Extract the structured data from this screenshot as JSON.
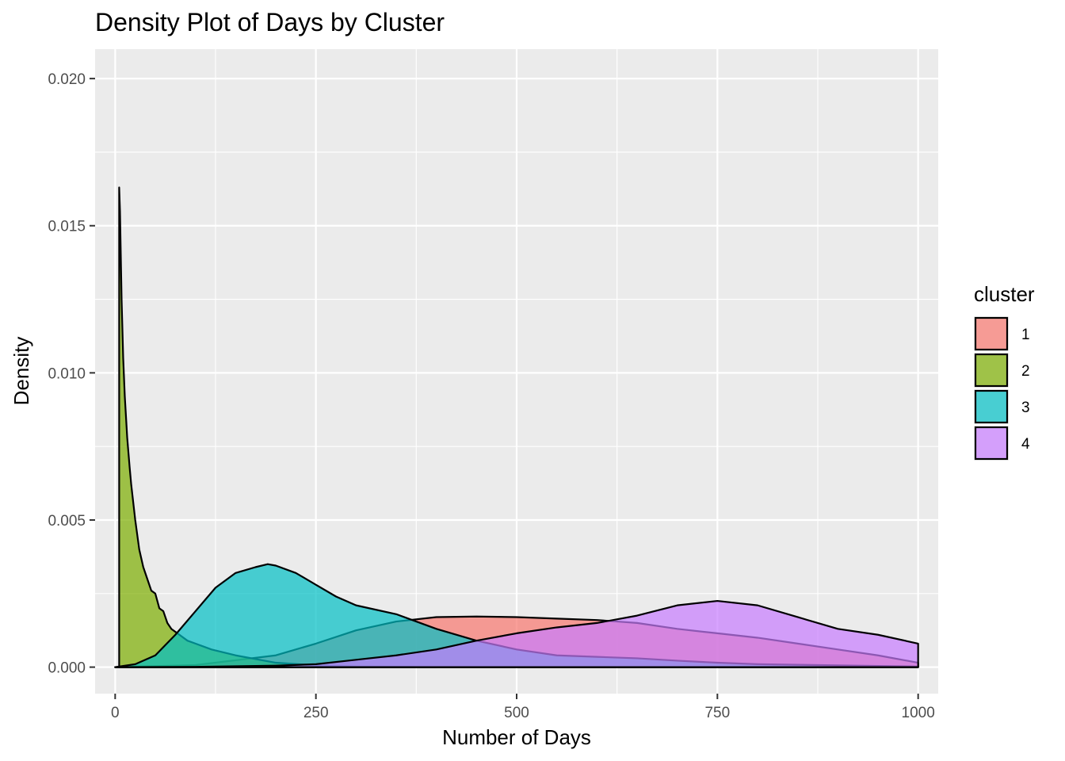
{
  "chart_data": {
    "type": "area",
    "title": "Density Plot of Days by Cluster",
    "xlabel": "Number of Days",
    "ylabel": "Density",
    "xlim": [
      -25,
      1025
    ],
    "ylim": [
      -0.0009,
      0.021
    ],
    "x_ticks": [
      0,
      250,
      500,
      750,
      1000
    ],
    "x_tick_labels": [
      "0",
      "250",
      "500",
      "750",
      "1000"
    ],
    "y_ticks": [
      0.0,
      0.005,
      0.01,
      0.015,
      0.02
    ],
    "y_tick_labels": [
      "0.000",
      "0.005",
      "0.010",
      "0.015",
      "0.020"
    ],
    "grid": true,
    "legend": {
      "title": "cluster",
      "position": "right"
    },
    "series": [
      {
        "name": "1",
        "color": "#F8766D",
        "x": [
          0,
          100,
          200,
          250,
          300,
          350,
          400,
          450,
          500,
          550,
          600,
          650,
          700,
          750,
          800,
          850,
          900,
          950,
          1000
        ],
        "y": [
          0.0,
          7e-05,
          0.0004,
          0.0008,
          0.00125,
          0.00155,
          0.0017,
          0.00172,
          0.0017,
          0.00165,
          0.0016,
          0.0015,
          0.0013,
          0.00115,
          0.001,
          0.0008,
          0.0006,
          0.0004,
          0.00015
        ]
      },
      {
        "name": "2",
        "color": "#7CAE00",
        "x": [
          5,
          6,
          8,
          10,
          12,
          15,
          18,
          20,
          25,
          30,
          35,
          40,
          45,
          50,
          55,
          60,
          65,
          70,
          80,
          90,
          100,
          120,
          150,
          200,
          250,
          300,
          400
        ],
        "y": [
          0.0163,
          0.0155,
          0.0125,
          0.0105,
          0.0092,
          0.0078,
          0.0068,
          0.0062,
          0.005,
          0.004,
          0.0034,
          0.003,
          0.0026,
          0.0025,
          0.002,
          0.0019,
          0.0015,
          0.0013,
          0.0011,
          0.0009,
          0.0008,
          0.0006,
          0.0004,
          0.00015,
          6e-05,
          2e-05,
          0.0
        ]
      },
      {
        "name": "3",
        "color": "#00BFC4",
        "x": [
          0,
          25,
          50,
          75,
          100,
          125,
          150,
          175,
          190,
          200,
          225,
          250,
          275,
          300,
          350,
          400,
          450,
          500,
          550,
          600,
          650,
          700,
          750,
          800,
          850,
          900,
          950,
          1000
        ],
        "y": [
          0.0,
          0.0001,
          0.0004,
          0.0011,
          0.0019,
          0.0027,
          0.0032,
          0.0034,
          0.0035,
          0.00345,
          0.0032,
          0.0028,
          0.0024,
          0.0021,
          0.0018,
          0.0013,
          0.0009,
          0.0006,
          0.0004,
          0.00035,
          0.0003,
          0.00022,
          0.00015,
          0.0001,
          8e-05,
          6e-05,
          4e-05,
          2e-05
        ]
      },
      {
        "name": "4",
        "color": "#C77CFF",
        "x": [
          0,
          100,
          200,
          250,
          300,
          350,
          400,
          450,
          500,
          550,
          600,
          650,
          700,
          750,
          800,
          850,
          900,
          950,
          1000
        ],
        "y": [
          0.0,
          1e-05,
          5e-05,
          0.0001,
          0.00025,
          0.0004,
          0.0006,
          0.0009,
          0.00115,
          0.00135,
          0.0015,
          0.00175,
          0.0021,
          0.00225,
          0.0021,
          0.0017,
          0.0013,
          0.0011,
          0.0008
        ]
      }
    ]
  }
}
